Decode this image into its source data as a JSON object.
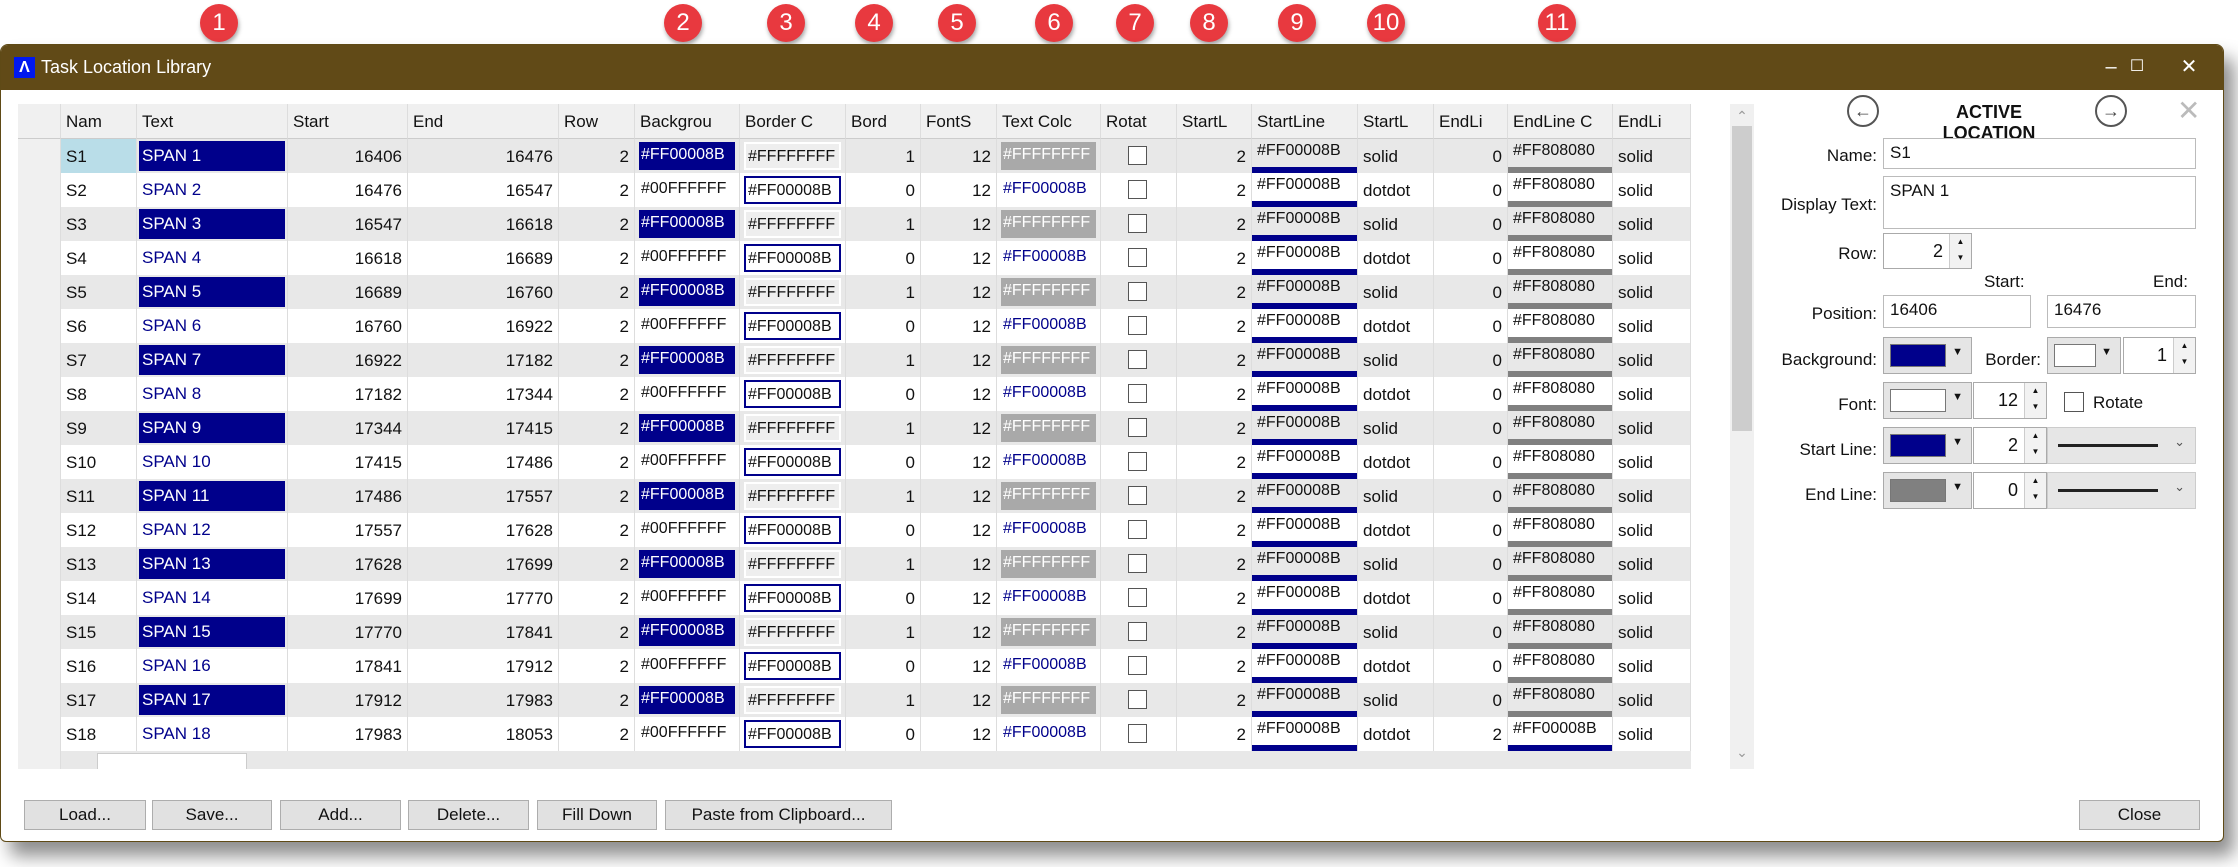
{
  "badges": [
    "1",
    "2",
    "3",
    "4",
    "5",
    "6",
    "7",
    "8",
    "9",
    "10",
    "11"
  ],
  "window": {
    "title": "Task Location Library",
    "minimize": "–",
    "maximize": "☐",
    "close": "✕"
  },
  "grid": {
    "headers": [
      "",
      "Nam",
      "Text",
      "Start",
      "End",
      "Row",
      "Backgrou",
      "Border C",
      "Bord",
      "FontS",
      "Text Colc",
      "Rotat",
      "StartL",
      "StartLine",
      "StartL",
      "EndLi",
      "EndLine C",
      "EndLi"
    ],
    "rows": [
      {
        "name": "S1",
        "text": "SPAN 1",
        "start": "16406",
        "end": "16476",
        "row": "2",
        "background": "#FF00008B",
        "border_color": "#FFFFFFFF",
        "border_width": "1",
        "font_size": "12",
        "text_color": "#FFFFFFFF",
        "rotate": false,
        "start_line_width": "2",
        "start_line_color": "#FF00008B",
        "start_line_style": "solid",
        "end_line_width": "0",
        "end_line_color": "#FF808080",
        "end_line_style": "solid"
      },
      {
        "name": "S2",
        "text": "SPAN 2",
        "start": "16476",
        "end": "16547",
        "row": "2",
        "background": "#00FFFFFF",
        "border_color": "#FF00008B",
        "border_width": "0",
        "font_size": "12",
        "text_color": "#FF00008B",
        "rotate": false,
        "start_line_width": "2",
        "start_line_color": "#FF00008B",
        "start_line_style": "dotdot",
        "end_line_width": "0",
        "end_line_color": "#FF808080",
        "end_line_style": "solid"
      },
      {
        "name": "S3",
        "text": "SPAN 3",
        "start": "16547",
        "end": "16618",
        "row": "2",
        "background": "#FF00008B",
        "border_color": "#FFFFFFFF",
        "border_width": "1",
        "font_size": "12",
        "text_color": "#FFFFFFFF",
        "rotate": false,
        "start_line_width": "2",
        "start_line_color": "#FF00008B",
        "start_line_style": "solid",
        "end_line_width": "0",
        "end_line_color": "#FF808080",
        "end_line_style": "solid"
      },
      {
        "name": "S4",
        "text": "SPAN 4",
        "start": "16618",
        "end": "16689",
        "row": "2",
        "background": "#00FFFFFF",
        "border_color": "#FF00008B",
        "border_width": "0",
        "font_size": "12",
        "text_color": "#FF00008B",
        "rotate": false,
        "start_line_width": "2",
        "start_line_color": "#FF00008B",
        "start_line_style": "dotdot",
        "end_line_width": "0",
        "end_line_color": "#FF808080",
        "end_line_style": "solid"
      },
      {
        "name": "S5",
        "text": "SPAN 5",
        "start": "16689",
        "end": "16760",
        "row": "2",
        "background": "#FF00008B",
        "border_color": "#FFFFFFFF",
        "border_width": "1",
        "font_size": "12",
        "text_color": "#FFFFFFFF",
        "rotate": false,
        "start_line_width": "2",
        "start_line_color": "#FF00008B",
        "start_line_style": "solid",
        "end_line_width": "0",
        "end_line_color": "#FF808080",
        "end_line_style": "solid"
      },
      {
        "name": "S6",
        "text": "SPAN 6",
        "start": "16760",
        "end": "16922",
        "row": "2",
        "background": "#00FFFFFF",
        "border_color": "#FF00008B",
        "border_width": "0",
        "font_size": "12",
        "text_color": "#FF00008B",
        "rotate": false,
        "start_line_width": "2",
        "start_line_color": "#FF00008B",
        "start_line_style": "dotdot",
        "end_line_width": "0",
        "end_line_color": "#FF808080",
        "end_line_style": "solid"
      },
      {
        "name": "S7",
        "text": "SPAN 7",
        "start": "16922",
        "end": "17182",
        "row": "2",
        "background": "#FF00008B",
        "border_color": "#FFFFFFFF",
        "border_width": "1",
        "font_size": "12",
        "text_color": "#FFFFFFFF",
        "rotate": false,
        "start_line_width": "2",
        "start_line_color": "#FF00008B",
        "start_line_style": "solid",
        "end_line_width": "0",
        "end_line_color": "#FF808080",
        "end_line_style": "solid"
      },
      {
        "name": "S8",
        "text": "SPAN 8",
        "start": "17182",
        "end": "17344",
        "row": "2",
        "background": "#00FFFFFF",
        "border_color": "#FF00008B",
        "border_width": "0",
        "font_size": "12",
        "text_color": "#FF00008B",
        "rotate": false,
        "start_line_width": "2",
        "start_line_color": "#FF00008B",
        "start_line_style": "dotdot",
        "end_line_width": "0",
        "end_line_color": "#FF808080",
        "end_line_style": "solid"
      },
      {
        "name": "S9",
        "text": "SPAN 9",
        "start": "17344",
        "end": "17415",
        "row": "2",
        "background": "#FF00008B",
        "border_color": "#FFFFFFFF",
        "border_width": "1",
        "font_size": "12",
        "text_color": "#FFFFFFFF",
        "rotate": false,
        "start_line_width": "2",
        "start_line_color": "#FF00008B",
        "start_line_style": "solid",
        "end_line_width": "0",
        "end_line_color": "#FF808080",
        "end_line_style": "solid"
      },
      {
        "name": "S10",
        "text": "SPAN 10",
        "start": "17415",
        "end": "17486",
        "row": "2",
        "background": "#00FFFFFF",
        "border_color": "#FF00008B",
        "border_width": "0",
        "font_size": "12",
        "text_color": "#FF00008B",
        "rotate": false,
        "start_line_width": "2",
        "start_line_color": "#FF00008B",
        "start_line_style": "dotdot",
        "end_line_width": "0",
        "end_line_color": "#FF808080",
        "end_line_style": "solid"
      },
      {
        "name": "S11",
        "text": "SPAN 11",
        "start": "17486",
        "end": "17557",
        "row": "2",
        "background": "#FF00008B",
        "border_color": "#FFFFFFFF",
        "border_width": "1",
        "font_size": "12",
        "text_color": "#FFFFFFFF",
        "rotate": false,
        "start_line_width": "2",
        "start_line_color": "#FF00008B",
        "start_line_style": "solid",
        "end_line_width": "0",
        "end_line_color": "#FF808080",
        "end_line_style": "solid"
      },
      {
        "name": "S12",
        "text": "SPAN 12",
        "start": "17557",
        "end": "17628",
        "row": "2",
        "background": "#00FFFFFF",
        "border_color": "#FF00008B",
        "border_width": "0",
        "font_size": "12",
        "text_color": "#FF00008B",
        "rotate": false,
        "start_line_width": "2",
        "start_line_color": "#FF00008B",
        "start_line_style": "dotdot",
        "end_line_width": "0",
        "end_line_color": "#FF808080",
        "end_line_style": "solid"
      },
      {
        "name": "S13",
        "text": "SPAN 13",
        "start": "17628",
        "end": "17699",
        "row": "2",
        "background": "#FF00008B",
        "border_color": "#FFFFFFFF",
        "border_width": "1",
        "font_size": "12",
        "text_color": "#FFFFFFFF",
        "rotate": false,
        "start_line_width": "2",
        "start_line_color": "#FF00008B",
        "start_line_style": "solid",
        "end_line_width": "0",
        "end_line_color": "#FF808080",
        "end_line_style": "solid"
      },
      {
        "name": "S14",
        "text": "SPAN 14",
        "start": "17699",
        "end": "17770",
        "row": "2",
        "background": "#00FFFFFF",
        "border_color": "#FF00008B",
        "border_width": "0",
        "font_size": "12",
        "text_color": "#FF00008B",
        "rotate": false,
        "start_line_width": "2",
        "start_line_color": "#FF00008B",
        "start_line_style": "dotdot",
        "end_line_width": "0",
        "end_line_color": "#FF808080",
        "end_line_style": "solid"
      },
      {
        "name": "S15",
        "text": "SPAN 15",
        "start": "17770",
        "end": "17841",
        "row": "2",
        "background": "#FF00008B",
        "border_color": "#FFFFFFFF",
        "border_width": "1",
        "font_size": "12",
        "text_color": "#FFFFFFFF",
        "rotate": false,
        "start_line_width": "2",
        "start_line_color": "#FF00008B",
        "start_line_style": "solid",
        "end_line_width": "0",
        "end_line_color": "#FF808080",
        "end_line_style": "solid"
      },
      {
        "name": "S16",
        "text": "SPAN 16",
        "start": "17841",
        "end": "17912",
        "row": "2",
        "background": "#00FFFFFF",
        "border_color": "#FF00008B",
        "border_width": "0",
        "font_size": "12",
        "text_color": "#FF00008B",
        "rotate": false,
        "start_line_width": "2",
        "start_line_color": "#FF00008B",
        "start_line_style": "dotdot",
        "end_line_width": "0",
        "end_line_color": "#FF808080",
        "end_line_style": "solid"
      },
      {
        "name": "S17",
        "text": "SPAN 17",
        "start": "17912",
        "end": "17983",
        "row": "2",
        "background": "#FF00008B",
        "border_color": "#FFFFFFFF",
        "border_width": "1",
        "font_size": "12",
        "text_color": "#FFFFFFFF",
        "rotate": false,
        "start_line_width": "2",
        "start_line_color": "#FF00008B",
        "start_line_style": "solid",
        "end_line_width": "0",
        "end_line_color": "#FF808080",
        "end_line_style": "solid"
      },
      {
        "name": "S18",
        "text": "SPAN 18",
        "start": "17983",
        "end": "18053",
        "row": "2",
        "background": "#00FFFFFF",
        "border_color": "#FF00008B",
        "border_width": "0",
        "font_size": "12",
        "text_color": "#FF00008B",
        "rotate": false,
        "start_line_width": "2",
        "start_line_color": "#FF00008B",
        "start_line_style": "dotdot",
        "end_line_width": "2",
        "end_line_color": "#FF00008B",
        "end_line_style": "solid"
      }
    ]
  },
  "buttons": {
    "load": "Load...",
    "save": "Save...",
    "add": "Add...",
    "delete": "Delete...",
    "fill_down": "Fill Down",
    "paste": "Paste from Clipboard...",
    "close": "Close"
  },
  "panel": {
    "title": "ACTIVE LOCATION",
    "prev": "←",
    "next": "→",
    "close": "✕",
    "name_label": "Name:",
    "name_value": "S1",
    "display_text_label": "Display Text:",
    "display_text_value": "SPAN 1",
    "row_label": "Row:",
    "row_value": "2",
    "start_label": "Start:",
    "end_label": "End:",
    "position_label": "Position:",
    "start_value": "16406",
    "end_value": "16476",
    "background_label": "Background:",
    "background_color": "#00008B",
    "border_label": "Border:",
    "border_color": "#FFFFFF",
    "border_width": "1",
    "font_label": "Font:",
    "font_color": "#FFFFFF",
    "font_size": "12",
    "rotate_label": "Rotate",
    "rotate": false,
    "start_line_label": "Start Line:",
    "start_line_color": "#00008B",
    "start_line_width": "2",
    "start_line_style": "solid",
    "end_line_label": "End Line:",
    "end_line_color": "#808080",
    "end_line_width": "0",
    "end_line_style": "solid"
  }
}
